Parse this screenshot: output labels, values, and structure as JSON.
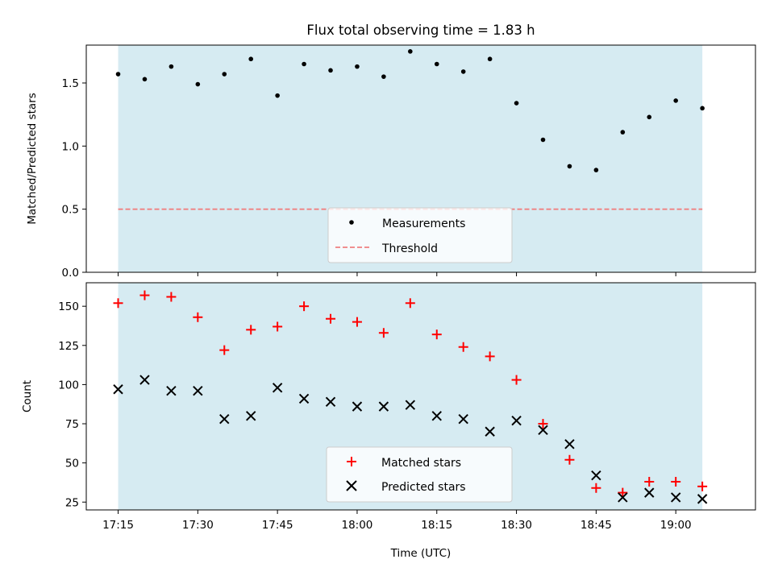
{
  "chart_data": [
    {
      "type": "scatter",
      "title": "Flux total observing time = 1.83 h",
      "ylabel": "Matched/Predicted stars",
      "xlabel": "",
      "ylim": [
        0,
        1.8
      ],
      "yticks": [
        0.0,
        0.5,
        1.0,
        1.5
      ],
      "ytick_labels": [
        "0.0",
        "0.5",
        "1.0",
        "1.5"
      ],
      "x_tick_labels": [],
      "shade": {
        "from": "17:15",
        "to": "19:05",
        "color": "#add8e6"
      },
      "threshold": {
        "name": "Threshold",
        "value": 0.5,
        "color": "#f08080",
        "style": "dashed"
      },
      "legend_position": "bottom-center",
      "series": [
        {
          "name": "Measurements",
          "marker": "dot",
          "color": "#000000",
          "x": [
            "17:15",
            "17:20",
            "17:25",
            "17:30",
            "17:35",
            "17:40",
            "17:45",
            "17:50",
            "17:55",
            "18:00",
            "18:05",
            "18:10",
            "18:15",
            "18:20",
            "18:25",
            "18:30",
            "18:35",
            "18:40",
            "18:45",
            "18:50",
            "18:55",
            "19:00",
            "19:05"
          ],
          "y": [
            1.57,
            1.53,
            1.63,
            1.49,
            1.57,
            1.69,
            1.4,
            1.65,
            1.6,
            1.63,
            1.55,
            1.75,
            1.65,
            1.59,
            1.69,
            1.34,
            1.05,
            0.84,
            0.81,
            1.11,
            1.23,
            1.36,
            1.3
          ]
        }
      ]
    },
    {
      "type": "scatter",
      "title": "",
      "ylabel": "Count",
      "xlabel": "Time (UTC)",
      "ylim": [
        20,
        165
      ],
      "yticks": [
        25,
        50,
        75,
        100,
        125,
        150
      ],
      "ytick_labels": [
        "25",
        "50",
        "75",
        "100",
        "125",
        "150"
      ],
      "xlim": [
        "17:09",
        "19:15"
      ],
      "x_ticks": [
        "17:15",
        "17:30",
        "17:45",
        "18:00",
        "18:15",
        "18:30",
        "18:45",
        "19:00"
      ],
      "x_tick_labels": [
        "17:15",
        "17:30",
        "17:45",
        "18:00",
        "18:15",
        "18:30",
        "18:45",
        "19:00"
      ],
      "shade": {
        "from": "17:15",
        "to": "19:05",
        "color": "#add8e6"
      },
      "legend_position": "bottom-center",
      "series": [
        {
          "name": "Matched stars",
          "marker": "plus",
          "color": "#ff0000",
          "x": [
            "17:15",
            "17:20",
            "17:25",
            "17:30",
            "17:35",
            "17:40",
            "17:45",
            "17:50",
            "17:55",
            "18:00",
            "18:05",
            "18:10",
            "18:15",
            "18:20",
            "18:25",
            "18:30",
            "18:35",
            "18:40",
            "18:45",
            "18:50",
            "18:55",
            "19:00",
            "19:05"
          ],
          "y": [
            152,
            157,
            156,
            143,
            122,
            135,
            137,
            150,
            142,
            140,
            133,
            152,
            132,
            124,
            118,
            103,
            75,
            52,
            34,
            31,
            38,
            38,
            35
          ]
        },
        {
          "name": "Predicted stars",
          "marker": "x",
          "color": "#000000",
          "x": [
            "17:15",
            "17:20",
            "17:25",
            "17:30",
            "17:35",
            "17:40",
            "17:45",
            "17:50",
            "17:55",
            "18:00",
            "18:05",
            "18:10",
            "18:15",
            "18:20",
            "18:25",
            "18:30",
            "18:35",
            "18:40",
            "18:45",
            "18:50",
            "18:55",
            "19:00",
            "19:05"
          ],
          "y": [
            97,
            103,
            96,
            96,
            78,
            80,
            98,
            91,
            89,
            86,
            86,
            87,
            80,
            78,
            70,
            77,
            71,
            62,
            42,
            28,
            31,
            28,
            27
          ]
        }
      ]
    }
  ]
}
